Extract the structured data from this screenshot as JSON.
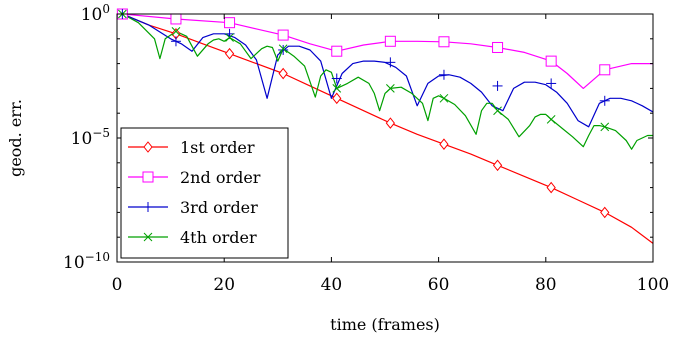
{
  "chart_data": {
    "type": "line",
    "xlabel": "time (frames)",
    "ylabel": "geod. err.",
    "xlim": [
      0,
      100
    ],
    "ylim_log10": [
      -10,
      0
    ],
    "y_scale": "log",
    "legend_position": "bottom-left",
    "xticks": [
      {
        "value": 0,
        "label": "0"
      },
      {
        "value": 20,
        "label": "20"
      },
      {
        "value": 40,
        "label": "40"
      },
      {
        "value": 60,
        "label": "60"
      },
      {
        "value": 80,
        "label": "80"
      },
      {
        "value": 100,
        "label": "100"
      }
    ],
    "yticks": [
      {
        "value": 0,
        "base": "10",
        "exp": "0"
      },
      {
        "value": -5,
        "base": "10",
        "exp": "−5"
      },
      {
        "value": -10,
        "base": "10",
        "exp": "−10"
      }
    ],
    "series": [
      {
        "name": "1st order",
        "color": "#ff0000",
        "marker": "diamond",
        "x": [
          1,
          6,
          11,
          16,
          21,
          26,
          31,
          36,
          41,
          46,
          51,
          56,
          61,
          66,
          71,
          76,
          81,
          86,
          91,
          96,
          100
        ],
        "log10_y": [
          0,
          -0.45,
          -0.8,
          -1.2,
          -1.6,
          -2.0,
          -2.4,
          -2.9,
          -3.4,
          -3.9,
          -4.4,
          -4.85,
          -5.25,
          -5.65,
          -6.1,
          -6.55,
          -7.0,
          -7.5,
          -8.0,
          -8.6,
          -9.25
        ],
        "marker_x": [
          1,
          11,
          21,
          31,
          41,
          51,
          61,
          71,
          81,
          91
        ],
        "marker_log10_y": [
          0,
          -0.8,
          -1.6,
          -2.4,
          -3.4,
          -4.4,
          -5.25,
          -6.1,
          -7.0,
          -8.0
        ]
      },
      {
        "name": "2nd order",
        "color": "#ff00ff",
        "marker": "square",
        "x": [
          1,
          11,
          21,
          26,
          31,
          36,
          41,
          46,
          51,
          56,
          61,
          66,
          71,
          76,
          81,
          84,
          87,
          91,
          96,
          100
        ],
        "log10_y": [
          0,
          -0.2,
          -0.35,
          -0.6,
          -0.85,
          -1.2,
          -1.5,
          -1.25,
          -1.1,
          -1.1,
          -1.12,
          -1.2,
          -1.35,
          -1.55,
          -1.9,
          -2.4,
          -3.0,
          -2.25,
          -2.0,
          -2.0
        ],
        "marker_x": [
          1,
          11,
          21,
          31,
          41,
          51,
          61,
          71,
          81,
          91
        ],
        "marker_log10_y": [
          0,
          -0.2,
          -0.35,
          -0.85,
          -1.5,
          -1.1,
          -1.12,
          -1.35,
          -1.9,
          -2.25
        ]
      },
      {
        "name": "3rd order",
        "color": "#0000cc",
        "marker": "plus",
        "x": [
          1,
          6,
          10,
          12,
          14,
          16,
          18,
          20,
          22,
          24,
          26,
          28,
          30,
          32,
          34,
          36,
          38,
          40,
          42,
          44,
          46,
          48,
          50,
          52,
          54,
          56,
          58,
          60,
          62,
          64,
          66,
          68,
          70,
          72,
          74,
          76,
          78,
          80,
          82,
          84,
          86,
          88,
          90,
          92,
          94,
          96,
          98,
          100
        ],
        "log10_y": [
          0,
          -0.45,
          -1.0,
          -1.2,
          -1.5,
          -0.95,
          -0.8,
          -0.8,
          -0.95,
          -1.25,
          -1.85,
          -3.4,
          -1.65,
          -1.3,
          -1.3,
          -1.45,
          -1.9,
          -3.4,
          -2.4,
          -2.0,
          -1.9,
          -1.9,
          -1.95,
          -2.15,
          -2.5,
          -3.7,
          -2.8,
          -2.5,
          -2.45,
          -2.55,
          -2.8,
          -3.15,
          -3.7,
          -3.9,
          -3.0,
          -2.75,
          -2.75,
          -2.85,
          -3.15,
          -3.6,
          -4.3,
          -4.55,
          -3.6,
          -3.4,
          -3.4,
          -3.5,
          -3.7,
          -3.95
        ],
        "marker_x": [
          1,
          11,
          21,
          31,
          41,
          51,
          61,
          71,
          81,
          91
        ],
        "marker_log10_y": [
          0,
          -1.1,
          -0.8,
          -1.45,
          -2.6,
          -1.95,
          -2.45,
          -2.9,
          -2.8,
          -3.5
        ]
      },
      {
        "name": "4th order",
        "color": "#00a000",
        "marker": "x",
        "x": [
          1,
          4,
          7,
          8,
          9,
          11,
          13,
          15,
          17,
          18,
          19,
          20,
          21,
          23,
          25,
          27,
          28,
          29,
          30,
          31,
          32,
          33,
          35,
          37,
          38,
          39,
          40,
          41,
          43,
          45,
          47,
          48,
          49,
          50,
          51,
          53,
          55,
          57,
          58,
          59,
          60,
          61,
          63,
          65,
          67,
          68,
          69,
          70,
          71,
          73,
          75,
          77,
          78,
          79,
          80,
          81,
          83,
          85,
          87,
          88,
          89,
          90,
          91,
          93,
          95,
          96,
          97,
          99,
          100
        ],
        "log10_y": [
          0,
          -0.35,
          -1.0,
          -1.8,
          -1.0,
          -0.7,
          -0.9,
          -1.7,
          -1.2,
          -1.05,
          -1.0,
          -1.1,
          -0.95,
          -1.2,
          -1.8,
          -1.4,
          -1.3,
          -1.35,
          -1.9,
          -1.4,
          -1.55,
          -1.7,
          -2.1,
          -3.35,
          -2.5,
          -2.25,
          -2.35,
          -3.0,
          -2.8,
          -2.55,
          -2.8,
          -3.2,
          -3.9,
          -3.2,
          -3.0,
          -2.95,
          -3.2,
          -3.6,
          -4.3,
          -3.4,
          -3.3,
          -3.4,
          -3.65,
          -4.1,
          -4.85,
          -3.9,
          -3.6,
          -3.6,
          -3.9,
          -4.25,
          -4.95,
          -4.5,
          -4.15,
          -4.05,
          -4.05,
          -4.25,
          -4.6,
          -4.95,
          -5.35,
          -4.9,
          -4.5,
          -4.5,
          -4.55,
          -4.7,
          -5.1,
          -5.45,
          -5.1,
          -4.9,
          -4.9
        ],
        "marker_x": [
          1,
          11,
          21,
          31,
          41,
          51,
          61,
          71,
          81,
          91
        ],
        "marker_log10_y": [
          0,
          -0.7,
          -0.95,
          -1.4,
          -3.0,
          -3.0,
          -3.4,
          -3.9,
          -4.25,
          -4.55
        ]
      }
    ]
  }
}
